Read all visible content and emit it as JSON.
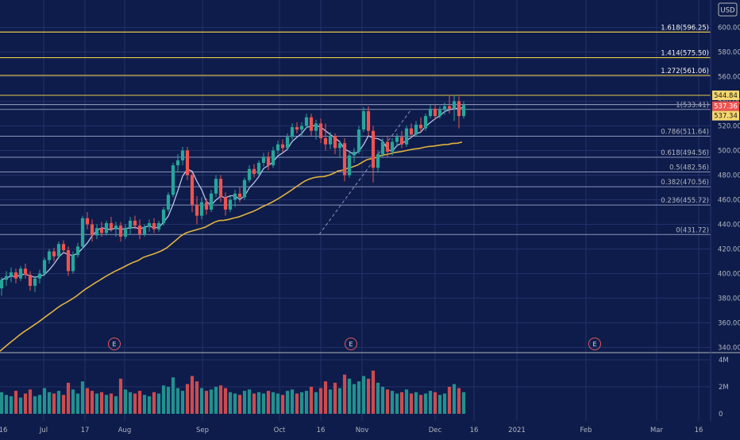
{
  "colors": {
    "background": "#0e1c4b",
    "grid": "#22306a",
    "up": "#26a69a",
    "down": "#ef5350",
    "ma_fast": "#b9c3ea",
    "ma_slow": "#e0b23f",
    "fib_line": "#8a93b8",
    "ext_line": "#e6c84a",
    "axis_text": "#b2b5be",
    "trend": "#8a93b8"
  },
  "currency_label": "USD",
  "price_axis": {
    "ticks": [
      "600.00",
      "580.00",
      "560.00",
      "540.00",
      "520.00",
      "500.00",
      "480.00",
      "460.00",
      "440.00",
      "420.00",
      "400.00",
      "380.00",
      "360.00",
      "340.00"
    ]
  },
  "volume_axis": {
    "ticks": [
      "4M",
      "2M",
      "0"
    ]
  },
  "time_axis": {
    "labels": [
      "16",
      "Jul",
      "17",
      "Aug",
      "Sep",
      "Oct",
      "16",
      "Nov",
      "Dec",
      "16",
      "2021",
      "Feb",
      "Mar",
      "16"
    ]
  },
  "price_badges": [
    "544.84",
    "537.36",
    "537.34"
  ],
  "earnings_marker": "E",
  "chart_data": {
    "type": "candlestick",
    "ylim": [
      328,
      612
    ],
    "volume_ylim": [
      0,
      4
    ],
    "fib_levels": [
      {
        "label": "0(431.72)",
        "value": 431.72
      },
      {
        "label": "0.236(455.72)",
        "value": 455.72
      },
      {
        "label": "0.382(470.56)",
        "value": 470.56
      },
      {
        "label": "0.5(482.56)",
        "value": 482.56
      },
      {
        "label": "0.618(494.56)",
        "value": 494.56
      },
      {
        "label": "0.786(511.64)",
        "value": 511.64
      },
      {
        "label": "1(533.41)",
        "value": 533.41
      },
      {
        "label": "1.272(561.06)",
        "value": 561.06
      },
      {
        "label": "1.414(575.50)",
        "value": 575.5
      },
      {
        "label": "1.618(596.25)",
        "value": 596.25
      }
    ],
    "horizontal_levels": [
      544.84,
      537.36,
      537.34
    ],
    "candles": [
      {
        "o": 388,
        "h": 397,
        "l": 382,
        "c": 395,
        "v": 1.6
      },
      {
        "o": 395,
        "h": 402,
        "l": 390,
        "c": 398,
        "v": 1.4
      },
      {
        "o": 398,
        "h": 405,
        "l": 393,
        "c": 401,
        "v": 1.3
      },
      {
        "o": 401,
        "h": 404,
        "l": 392,
        "c": 396,
        "v": 1.7
      },
      {
        "o": 396,
        "h": 406,
        "l": 394,
        "c": 404,
        "v": 1.2
      },
      {
        "o": 404,
        "h": 408,
        "l": 396,
        "c": 399,
        "v": 1.5
      },
      {
        "o": 399,
        "h": 402,
        "l": 386,
        "c": 390,
        "v": 1.8
      },
      {
        "o": 390,
        "h": 398,
        "l": 385,
        "c": 396,
        "v": 1.3
      },
      {
        "o": 396,
        "h": 403,
        "l": 392,
        "c": 400,
        "v": 1.4
      },
      {
        "o": 400,
        "h": 413,
        "l": 398,
        "c": 411,
        "v": 1.9
      },
      {
        "o": 411,
        "h": 420,
        "l": 408,
        "c": 418,
        "v": 1.6
      },
      {
        "o": 418,
        "h": 421,
        "l": 410,
        "c": 414,
        "v": 1.5
      },
      {
        "o": 414,
        "h": 426,
        "l": 412,
        "c": 424,
        "v": 1.7
      },
      {
        "o": 424,
        "h": 427,
        "l": 416,
        "c": 419,
        "v": 1.4
      },
      {
        "o": 419,
        "h": 422,
        "l": 398,
        "c": 402,
        "v": 2.3
      },
      {
        "o": 402,
        "h": 418,
        "l": 400,
        "c": 415,
        "v": 1.8
      },
      {
        "o": 415,
        "h": 425,
        "l": 413,
        "c": 422,
        "v": 1.5
      },
      {
        "o": 422,
        "h": 447,
        "l": 420,
        "c": 445,
        "v": 2.4
      },
      {
        "o": 445,
        "h": 450,
        "l": 436,
        "c": 440,
        "v": 1.9
      },
      {
        "o": 440,
        "h": 444,
        "l": 426,
        "c": 431,
        "v": 1.7
      },
      {
        "o": 431,
        "h": 440,
        "l": 428,
        "c": 437,
        "v": 1.5
      },
      {
        "o": 437,
        "h": 442,
        "l": 430,
        "c": 433,
        "v": 1.6
      },
      {
        "o": 433,
        "h": 443,
        "l": 431,
        "c": 441,
        "v": 1.4
      },
      {
        "o": 441,
        "h": 446,
        "l": 434,
        "c": 436,
        "v": 1.5
      },
      {
        "o": 436,
        "h": 442,
        "l": 430,
        "c": 439,
        "v": 1.3
      },
      {
        "o": 439,
        "h": 442,
        "l": 426,
        "c": 430,
        "v": 2.6
      },
      {
        "o": 430,
        "h": 440,
        "l": 428,
        "c": 437,
        "v": 1.8
      },
      {
        "o": 437,
        "h": 446,
        "l": 432,
        "c": 443,
        "v": 1.6
      },
      {
        "o": 443,
        "h": 447,
        "l": 436,
        "c": 439,
        "v": 1.5
      },
      {
        "o": 439,
        "h": 444,
        "l": 428,
        "c": 432,
        "v": 1.7
      },
      {
        "o": 432,
        "h": 440,
        "l": 430,
        "c": 438,
        "v": 1.4
      },
      {
        "o": 438,
        "h": 444,
        "l": 434,
        "c": 441,
        "v": 1.3
      },
      {
        "o": 441,
        "h": 445,
        "l": 433,
        "c": 436,
        "v": 1.6
      },
      {
        "o": 436,
        "h": 443,
        "l": 434,
        "c": 441,
        "v": 1.5
      },
      {
        "o": 441,
        "h": 454,
        "l": 439,
        "c": 452,
        "v": 2.1
      },
      {
        "o": 452,
        "h": 466,
        "l": 450,
        "c": 464,
        "v": 2.0
      },
      {
        "o": 464,
        "h": 490,
        "l": 462,
        "c": 488,
        "v": 2.7
      },
      {
        "o": 488,
        "h": 497,
        "l": 482,
        "c": 492,
        "v": 1.9
      },
      {
        "o": 492,
        "h": 503,
        "l": 488,
        "c": 500,
        "v": 1.7
      },
      {
        "o": 500,
        "h": 503,
        "l": 476,
        "c": 480,
        "v": 2.2
      },
      {
        "o": 480,
        "h": 482,
        "l": 450,
        "c": 456,
        "v": 2.8
      },
      {
        "o": 456,
        "h": 463,
        "l": 440,
        "c": 447,
        "v": 2.4
      },
      {
        "o": 447,
        "h": 462,
        "l": 444,
        "c": 458,
        "v": 1.9
      },
      {
        "o": 458,
        "h": 461,
        "l": 448,
        "c": 452,
        "v": 1.7
      },
      {
        "o": 452,
        "h": 468,
        "l": 450,
        "c": 465,
        "v": 1.8
      },
      {
        "o": 465,
        "h": 480,
        "l": 462,
        "c": 477,
        "v": 2.0
      },
      {
        "o": 477,
        "h": 480,
        "l": 458,
        "c": 462,
        "v": 2.1
      },
      {
        "o": 462,
        "h": 466,
        "l": 447,
        "c": 452,
        "v": 1.9
      },
      {
        "o": 452,
        "h": 463,
        "l": 450,
        "c": 460,
        "v": 1.6
      },
      {
        "o": 460,
        "h": 468,
        "l": 454,
        "c": 465,
        "v": 1.5
      },
      {
        "o": 465,
        "h": 470,
        "l": 458,
        "c": 462,
        "v": 1.4
      },
      {
        "o": 462,
        "h": 478,
        "l": 460,
        "c": 476,
        "v": 1.7
      },
      {
        "o": 476,
        "h": 488,
        "l": 474,
        "c": 485,
        "v": 1.8
      },
      {
        "o": 485,
        "h": 489,
        "l": 478,
        "c": 481,
        "v": 1.5
      },
      {
        "o": 481,
        "h": 492,
        "l": 479,
        "c": 490,
        "v": 1.6
      },
      {
        "o": 490,
        "h": 498,
        "l": 487,
        "c": 495,
        "v": 1.5
      },
      {
        "o": 495,
        "h": 499,
        "l": 484,
        "c": 488,
        "v": 1.7
      },
      {
        "o": 488,
        "h": 503,
        "l": 486,
        "c": 500,
        "v": 1.6
      },
      {
        "o": 500,
        "h": 508,
        "l": 497,
        "c": 505,
        "v": 1.5
      },
      {
        "o": 505,
        "h": 509,
        "l": 498,
        "c": 502,
        "v": 1.4
      },
      {
        "o": 502,
        "h": 514,
        "l": 500,
        "c": 511,
        "v": 1.7
      },
      {
        "o": 511,
        "h": 522,
        "l": 509,
        "c": 519,
        "v": 1.8
      },
      {
        "o": 519,
        "h": 523,
        "l": 514,
        "c": 517,
        "v": 1.5
      },
      {
        "o": 517,
        "h": 523,
        "l": 511,
        "c": 520,
        "v": 1.6
      },
      {
        "o": 520,
        "h": 530,
        "l": 518,
        "c": 527,
        "v": 1.7
      },
      {
        "o": 527,
        "h": 530,
        "l": 512,
        "c": 516,
        "v": 2.0
      },
      {
        "o": 516,
        "h": 525,
        "l": 509,
        "c": 522,
        "v": 1.6
      },
      {
        "o": 522,
        "h": 526,
        "l": 506,
        "c": 510,
        "v": 1.9
      },
      {
        "o": 510,
        "h": 522,
        "l": 500,
        "c": 505,
        "v": 2.4
      },
      {
        "o": 505,
        "h": 515,
        "l": 501,
        "c": 512,
        "v": 1.8
      },
      {
        "o": 512,
        "h": 514,
        "l": 497,
        "c": 502,
        "v": 2.3
      },
      {
        "o": 502,
        "h": 508,
        "l": 494,
        "c": 506,
        "v": 1.9
      },
      {
        "o": 506,
        "h": 510,
        "l": 475,
        "c": 480,
        "v": 2.9
      },
      {
        "o": 480,
        "h": 500,
        "l": 478,
        "c": 496,
        "v": 2.6
      },
      {
        "o": 496,
        "h": 502,
        "l": 490,
        "c": 499,
        "v": 2.2
      },
      {
        "o": 499,
        "h": 520,
        "l": 497,
        "c": 517,
        "v": 2.4
      },
      {
        "o": 517,
        "h": 535,
        "l": 515,
        "c": 532,
        "v": 2.8
      },
      {
        "o": 532,
        "h": 536,
        "l": 512,
        "c": 516,
        "v": 2.6
      },
      {
        "o": 516,
        "h": 520,
        "l": 474,
        "c": 486,
        "v": 3.2
      },
      {
        "o": 486,
        "h": 500,
        "l": 482,
        "c": 497,
        "v": 2.3
      },
      {
        "o": 497,
        "h": 510,
        "l": 494,
        "c": 507,
        "v": 2.0
      },
      {
        "o": 507,
        "h": 512,
        "l": 495,
        "c": 499,
        "v": 1.8
      },
      {
        "o": 499,
        "h": 510,
        "l": 496,
        "c": 507,
        "v": 1.7
      },
      {
        "o": 507,
        "h": 514,
        "l": 503,
        "c": 511,
        "v": 1.5
      },
      {
        "o": 511,
        "h": 516,
        "l": 502,
        "c": 505,
        "v": 1.6
      },
      {
        "o": 505,
        "h": 520,
        "l": 503,
        "c": 518,
        "v": 1.8
      },
      {
        "o": 518,
        "h": 522,
        "l": 510,
        "c": 513,
        "v": 1.5
      },
      {
        "o": 513,
        "h": 524,
        "l": 511,
        "c": 521,
        "v": 1.6
      },
      {
        "o": 521,
        "h": 527,
        "l": 515,
        "c": 518,
        "v": 1.4
      },
      {
        "o": 518,
        "h": 530,
        "l": 516,
        "c": 528,
        "v": 1.5
      },
      {
        "o": 528,
        "h": 537,
        "l": 526,
        "c": 534,
        "v": 1.7
      },
      {
        "o": 534,
        "h": 537,
        "l": 525,
        "c": 528,
        "v": 1.6
      },
      {
        "o": 528,
        "h": 536,
        "l": 526,
        "c": 533,
        "v": 1.4
      },
      {
        "o": 533,
        "h": 539,
        "l": 529,
        "c": 536,
        "v": 1.5
      },
      {
        "o": 536,
        "h": 545,
        "l": 530,
        "c": 534,
        "v": 2.0
      },
      {
        "o": 534,
        "h": 545,
        "l": 524,
        "c": 540,
        "v": 2.2
      },
      {
        "o": 540,
        "h": 544,
        "l": 518,
        "c": 528,
        "v": 1.9
      },
      {
        "o": 528,
        "h": 540,
        "l": 526,
        "c": 537,
        "v": 1.6
      }
    ]
  }
}
